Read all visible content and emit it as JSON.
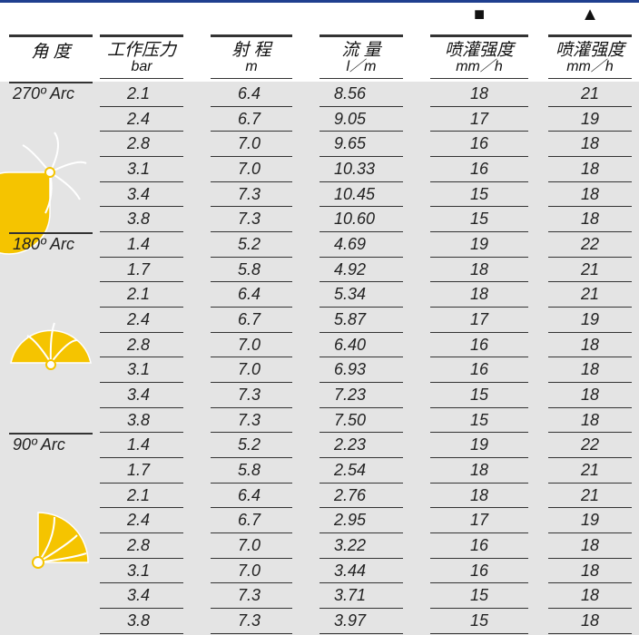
{
  "markers": [
    "■",
    "▲"
  ],
  "header": {
    "columns": [
      {
        "title": "角 度"
      },
      {
        "title": "工作压力",
        "unit": "bar"
      },
      {
        "title": "射 程",
        "unit": "m"
      },
      {
        "title": "流 量",
        "unit": "l／m"
      },
      {
        "title": "喷灌强度",
        "unit": "mm／h"
      },
      {
        "title": "喷灌强度",
        "unit": "mm／h"
      }
    ]
  },
  "groups": [
    {
      "label": "270º Arc",
      "rows": [
        [
          "2.1",
          "6.4",
          "8.56",
          "18",
          "21"
        ],
        [
          "2.4",
          "6.7",
          "9.05",
          "17",
          "19"
        ],
        [
          "2.8",
          "7.0",
          "9.65",
          "16",
          "18"
        ],
        [
          "3.1",
          "7.0",
          "10.33",
          "16",
          "18"
        ],
        [
          "3.4",
          "7.3",
          "10.45",
          "15",
          "18"
        ],
        [
          "3.8",
          "7.3",
          "10.60",
          "15",
          "18"
        ]
      ]
    },
    {
      "label": "180º Arc",
      "rows": [
        [
          "1.4",
          "5.2",
          "4.69",
          "19",
          "22"
        ],
        [
          "1.7",
          "5.8",
          "4.92",
          "18",
          "21"
        ],
        [
          "2.1",
          "6.4",
          "5.34",
          "18",
          "21"
        ],
        [
          "2.4",
          "6.7",
          "5.87",
          "17",
          "19"
        ],
        [
          "2.8",
          "7.0",
          "6.40",
          "16",
          "18"
        ],
        [
          "3.1",
          "7.0",
          "6.93",
          "16",
          "18"
        ],
        [
          "3.4",
          "7.3",
          "7.23",
          "15",
          "18"
        ],
        [
          "3.8",
          "7.3",
          "7.50",
          "15",
          "18"
        ]
      ]
    },
    {
      "label": "90º Arc",
      "rows": [
        [
          "1.4",
          "5.2",
          "2.23",
          "19",
          "22"
        ],
        [
          "1.7",
          "5.8",
          "2.54",
          "18",
          "21"
        ],
        [
          "2.1",
          "6.4",
          "2.76",
          "18",
          "21"
        ],
        [
          "2.4",
          "6.7",
          "2.95",
          "17",
          "19"
        ],
        [
          "2.8",
          "7.0",
          "3.22",
          "16",
          "18"
        ],
        [
          "3.1",
          "7.0",
          "3.44",
          "16",
          "18"
        ],
        [
          "3.4",
          "7.3",
          "3.71",
          "15",
          "18"
        ],
        [
          "3.8",
          "7.3",
          "3.97",
          "15",
          "18"
        ]
      ]
    }
  ]
}
